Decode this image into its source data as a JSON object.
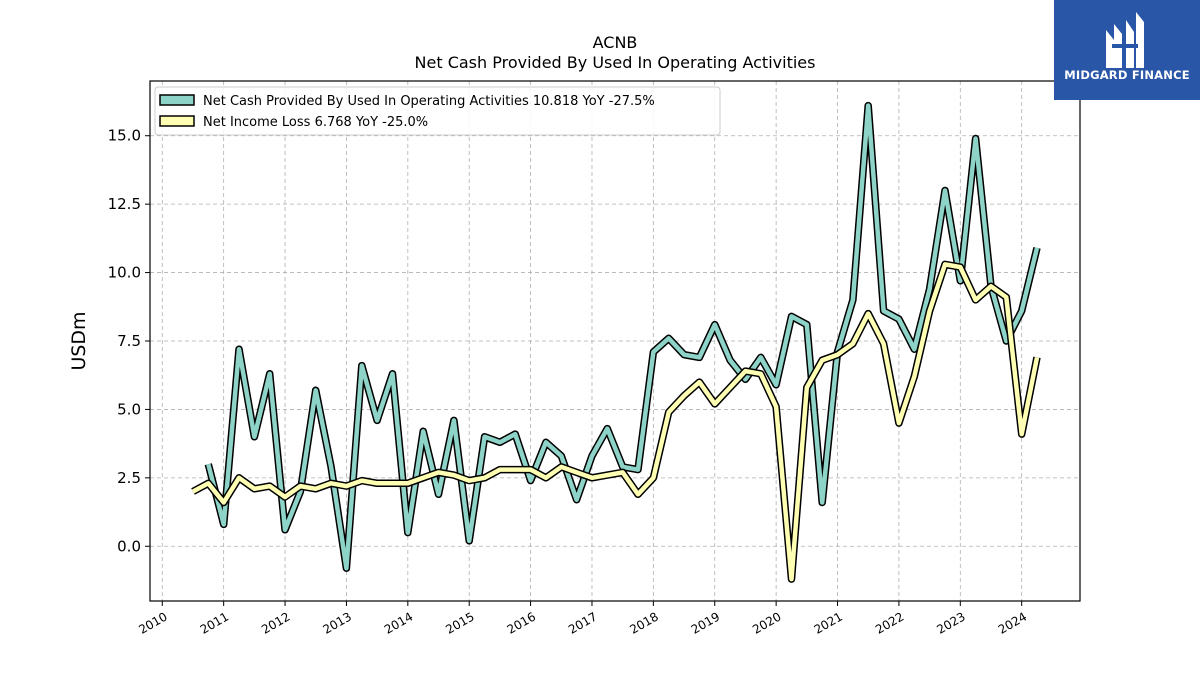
{
  "brand": {
    "name": "MIDGARD FINANCE",
    "bg_color": "#2a56a8"
  },
  "chart_data": {
    "type": "line",
    "title": "ACNB",
    "subtitle": "Net Cash Provided By Used In Operating Activities",
    "ylabel": "USDm",
    "xlabel": "",
    "ylim": [
      -2.0,
      17.0
    ],
    "xlim": [
      2009.8,
      2024.95
    ],
    "yticks": [
      0.0,
      2.5,
      5.0,
      7.5,
      10.0,
      12.5,
      15.0
    ],
    "ytick_labels": [
      "0.0",
      "2.5",
      "5.0",
      "7.5",
      "10.0",
      "12.5",
      "15.0"
    ],
    "xticks": [
      2010,
      2011,
      2012,
      2013,
      2014,
      2015,
      2016,
      2017,
      2018,
      2019,
      2020,
      2021,
      2022,
      2023,
      2024
    ],
    "xtick_labels": [
      "2010",
      "2011",
      "2012",
      "2013",
      "2014",
      "2015",
      "2016",
      "2017",
      "2018",
      "2019",
      "2020",
      "2021",
      "2022",
      "2023",
      "2024"
    ],
    "grid": true,
    "legend_position": "top-left",
    "series": [
      {
        "name": "Net Cash Provided By Used In Operating Activities",
        "legend_label": "Net Cash Provided By Used In Operating Activities  10.818 YoY -27.5%",
        "color": "#8dd3c7",
        "x": [
          2010.75,
          2011.0,
          2011.25,
          2011.5,
          2011.75,
          2012.0,
          2012.25,
          2012.5,
          2012.75,
          2013.0,
          2013.25,
          2013.5,
          2013.75,
          2014.0,
          2014.25,
          2014.5,
          2014.75,
          2015.0,
          2015.25,
          2015.5,
          2015.75,
          2016.0,
          2016.25,
          2016.5,
          2016.75,
          2017.0,
          2017.25,
          2017.5,
          2017.75,
          2018.0,
          2018.25,
          2018.5,
          2018.75,
          2019.0,
          2019.25,
          2019.5,
          2019.75,
          2020.0,
          2020.25,
          2020.5,
          2020.75,
          2021.0,
          2021.25,
          2021.5,
          2021.75,
          2022.0,
          2022.25,
          2022.5,
          2022.75,
          2023.0,
          2023.25,
          2023.5,
          2023.75,
          2024.0,
          2024.25
        ],
        "values": [
          3.0,
          0.8,
          7.2,
          4.0,
          6.3,
          0.6,
          2.0,
          5.7,
          2.9,
          -0.8,
          6.6,
          4.6,
          6.3,
          0.5,
          4.2,
          1.9,
          4.6,
          0.2,
          4.0,
          3.8,
          4.1,
          2.4,
          3.8,
          3.3,
          1.7,
          3.3,
          4.3,
          2.9,
          2.8,
          7.1,
          7.6,
          7.0,
          6.9,
          8.1,
          6.8,
          6.1,
          6.9,
          5.9,
          8.4,
          8.1,
          1.6,
          7.1,
          9.0,
          16.1,
          8.6,
          8.3,
          7.2,
          9.4,
          13.0,
          9.7,
          14.9,
          9.5,
          7.5,
          8.6,
          10.9
        ]
      },
      {
        "name": "Net Income Loss",
        "legend_label": "Net Income Loss  6.768 YoY -25.0%",
        "color": "#ffffb3",
        "x": [
          2010.5,
          2010.75,
          2011.0,
          2011.25,
          2011.5,
          2011.75,
          2012.0,
          2012.25,
          2012.5,
          2012.75,
          2013.0,
          2013.25,
          2013.5,
          2013.75,
          2014.0,
          2014.25,
          2014.5,
          2014.75,
          2015.0,
          2015.25,
          2015.5,
          2015.75,
          2016.0,
          2016.25,
          2016.5,
          2016.75,
          2017.0,
          2017.25,
          2017.5,
          2017.75,
          2018.0,
          2018.25,
          2018.5,
          2018.75,
          2019.0,
          2019.25,
          2019.5,
          2019.75,
          2020.0,
          2020.25,
          2020.5,
          2020.75,
          2021.0,
          2021.25,
          2021.5,
          2021.75,
          2022.0,
          2022.25,
          2022.5,
          2022.75,
          2023.0,
          2023.25,
          2023.5,
          2023.75,
          2024.0,
          2024.25
        ],
        "values": [
          2.0,
          2.3,
          1.6,
          2.5,
          2.1,
          2.2,
          1.8,
          2.2,
          2.1,
          2.3,
          2.2,
          2.4,
          2.3,
          2.3,
          2.3,
          2.5,
          2.7,
          2.6,
          2.4,
          2.5,
          2.8,
          2.8,
          2.8,
          2.5,
          2.9,
          2.7,
          2.5,
          2.6,
          2.7,
          1.9,
          2.5,
          4.9,
          5.5,
          6.0,
          5.2,
          5.8,
          6.4,
          6.3,
          5.1,
          -1.2,
          5.8,
          6.8,
          7.0,
          7.4,
          8.5,
          7.4,
          4.5,
          6.2,
          8.6,
          10.3,
          10.2,
          9.0,
          9.5,
          9.1,
          4.1,
          6.9
        ]
      }
    ]
  }
}
